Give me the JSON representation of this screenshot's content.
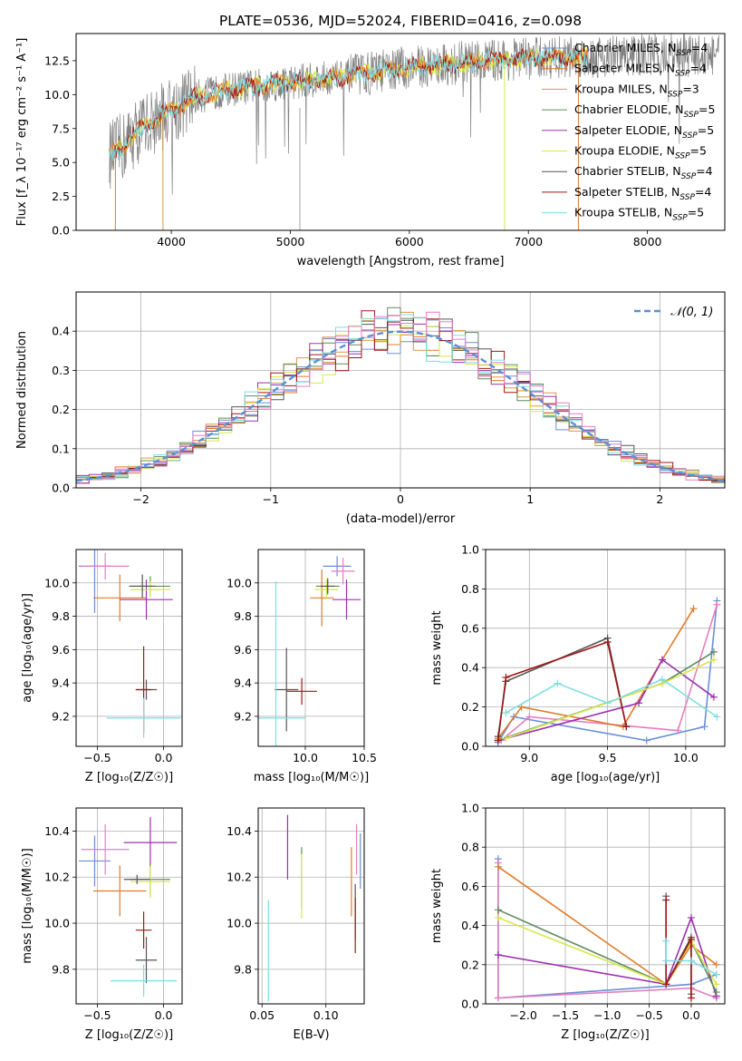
{
  "colors": {
    "chabrier_miles": "#6a8fd8",
    "salpeter_miles": "#e07b2a",
    "kroupa_miles": "#d99a40",
    "chabrier_elodie": "#5f8a5f",
    "salpeter_elodie": "#9b30b0",
    "kroupa_elodie": "#d6e84a",
    "chabrier_stelib": "#555555",
    "salpeter_stelib": "#a01818",
    "kroupa_stelib": "#7fdde0",
    "pink": "#e57fc0",
    "grey_spec": "#808080",
    "normal": "#5b8fd6"
  },
  "chart_data": [
    {
      "id": "spectrum",
      "type": "line",
      "title": "PLATE=0536, MJD=52024, FIBERID=0416, z=0.098",
      "xlabel": "wavelength [Angstrom, rest frame]",
      "ylabel": "Flux [f_λ 10⁻¹⁷ erg cm⁻² s⁻¹ A⁻¹]",
      "xlim": [
        3200,
        8650
      ],
      "ylim": [
        0,
        14.5
      ],
      "xticks": [
        "4000",
        "5000",
        "6000",
        "7000",
        "8000"
      ],
      "xtick_values": [
        4000,
        5000,
        6000,
        7000,
        8000
      ],
      "yticks": [
        "0.0",
        "2.5",
        "5.0",
        "7.5",
        "10.0",
        "12.5"
      ],
      "ytick_values": [
        0,
        2.5,
        5,
        7.5,
        10,
        12.5
      ],
      "legend_position": "top-right",
      "legend": [
        {
          "label": "Chabrier MILES, N",
          "sub": "SSP",
          "suffix": "=4",
          "color": "#6a8fd8"
        },
        {
          "label": "Salpeter MILES, N",
          "sub": "SSP",
          "suffix": "=4",
          "color": "#e07b2a"
        },
        {
          "label": "Kroupa MILES, N",
          "sub": "SSP",
          "suffix": "=3",
          "color": "#d99a40"
        },
        {
          "label": "Chabrier ELODIE, N",
          "sub": "SSP",
          "suffix": "=5",
          "color": "#5f8a5f"
        },
        {
          "label": "Salpeter ELODIE, N",
          "sub": "SSP",
          "suffix": "=5",
          "color": "#9b30b0"
        },
        {
          "label": "Kroupa ELODIE, N",
          "sub": "SSP",
          "suffix": "=5",
          "color": "#d6e84a"
        },
        {
          "label": "Chabrier STELIB, N",
          "sub": "SSP",
          "suffix": "=4",
          "color": "#555555"
        },
        {
          "label": "Salpeter STELIB, N",
          "sub": "SSP",
          "suffix": "=4",
          "color": "#a01818"
        },
        {
          "label": "Kroupa STELIB, N",
          "sub": "SSP",
          "suffix": "=5",
          "color": "#7fdde0"
        }
      ],
      "continuum_x": [
        3500,
        3600,
        3700,
        3800,
        3900,
        4000,
        4200,
        4500,
        5000,
        5500,
        6000,
        6500,
        7000,
        7500,
        8000,
        8500
      ],
      "continuum_y": [
        5.6,
        6.2,
        7.2,
        7.8,
        8.3,
        8.8,
        9.8,
        10.4,
        10.9,
        11.4,
        12.0,
        12.4,
        12.7,
        12.8,
        12.9,
        12.9
      ],
      "drops": [
        {
          "x": 3530,
          "color": "#e07b2a"
        },
        {
          "x": 3930,
          "color": "#d99a40"
        },
        {
          "x": 6800,
          "color": "#d6e84a"
        },
        {
          "x": 7420,
          "color": "#e07b2a"
        }
      ]
    },
    {
      "id": "residuals",
      "type": "step",
      "xlabel": "(data-model)/error",
      "ylabel": "Normed distribution",
      "xlim": [
        -2.5,
        2.5
      ],
      "ylim": [
        0,
        0.5
      ],
      "xticks": [
        "−2",
        "−1",
        "0",
        "1",
        "2"
      ],
      "xtick_values": [
        -2,
        -1,
        0,
        1,
        2
      ],
      "yticks": [
        "0.0",
        "0.1",
        "0.2",
        "0.3",
        "0.4"
      ],
      "ytick_values": [
        0,
        0.1,
        0.2,
        0.3,
        0.4
      ],
      "grid": true,
      "legend_position": "top-right",
      "legend_label": "𝒩(0, 1)",
      "bin_width": 0.1,
      "bins_start": -2.5
    },
    {
      "id": "z_age",
      "type": "errorbar",
      "xlabel": "Z [log₁₀(Z/Z☉)]",
      "ylabel": "age  [log₁₀(age/yr)]",
      "xlim": [
        -0.66,
        0.14
      ],
      "ylim": [
        9.02,
        10.2
      ],
      "xticks": [
        "−0.5",
        "0.0"
      ],
      "xtick_values": [
        -0.5,
        0
      ],
      "yticks": [
        "9.2",
        "9.4",
        "9.6",
        "9.8",
        "10.0"
      ],
      "ytick_values": [
        9.2,
        9.4,
        9.6,
        9.8,
        10.0
      ],
      "grid": true,
      "points": [
        {
          "x": -0.52,
          "y": 10.1,
          "xerr": 0.12,
          "yerr": 0.28,
          "color": "#6a8fd8"
        },
        {
          "x": -0.44,
          "y": 10.1,
          "xerr": 0.18,
          "yerr": 0.08,
          "color": "#e57fc0"
        },
        {
          "x": -0.33,
          "y": 9.91,
          "xerr": 0.2,
          "yerr": 0.14,
          "color": "#e07b2a"
        },
        {
          "x": -0.13,
          "y": 9.9,
          "xerr": 0.2,
          "yerr": 0.12,
          "color": "#9b30b0"
        },
        {
          "x": -0.1,
          "y": 9.98,
          "xerr": 0.15,
          "yerr": 0.06,
          "color": "#5f8a5f"
        },
        {
          "x": -0.1,
          "y": 9.96,
          "xerr": 0.15,
          "yerr": 0.05,
          "color": "#d6e84a"
        },
        {
          "x": -0.16,
          "y": 9.98,
          "xerr": 0.1,
          "yerr": 0.07,
          "color": "#555555"
        },
        {
          "x": -0.13,
          "y": 9.36,
          "xerr": 0.08,
          "yerr": 0.06,
          "color": "#555555"
        },
        {
          "x": -0.15,
          "y": 9.36,
          "xerr": 0.06,
          "yerr": 0.26,
          "color": "#a01818"
        },
        {
          "x": -0.15,
          "y": 9.19,
          "xerr": 0.28,
          "yerr": 0.12,
          "color": "#7fdde0"
        }
      ]
    },
    {
      "id": "mass_age",
      "type": "errorbar",
      "xlabel": "mass [log₁₀(M/M☉)]",
      "ylabel": "",
      "xlim": [
        9.6,
        10.5
      ],
      "ylim": [
        9.02,
        10.2
      ],
      "xticks": [
        "10.0",
        "10.5"
      ],
      "xtick_values": [
        10.0,
        10.5
      ],
      "yticks": [
        "9.2",
        "9.4",
        "9.6",
        "9.8",
        "10.0"
      ],
      "ytick_values": [
        9.2,
        9.4,
        9.6,
        9.8,
        10.0
      ],
      "grid": true,
      "points": [
        {
          "x": 10.27,
          "y": 10.1,
          "xerr": 0.12,
          "yerr": 0.06,
          "color": "#6a8fd8"
        },
        {
          "x": 10.32,
          "y": 10.07,
          "xerr": 0.1,
          "yerr": 0.08,
          "color": "#e57fc0"
        },
        {
          "x": 10.14,
          "y": 9.91,
          "xerr": 0.1,
          "yerr": 0.17,
          "color": "#e07b2a"
        },
        {
          "x": 10.35,
          "y": 9.9,
          "xerr": 0.12,
          "yerr": 0.12,
          "color": "#9b30b0"
        },
        {
          "x": 10.19,
          "y": 9.98,
          "xerr": 0.1,
          "yerr": 0.05,
          "color": "#5f8a5f"
        },
        {
          "x": 10.18,
          "y": 9.96,
          "xerr": 0.1,
          "yerr": 0.06,
          "color": "#d6e84a"
        },
        {
          "x": 10.19,
          "y": 9.98,
          "xerr": 0.06,
          "yerr": 0.04,
          "color": "#555555"
        },
        {
          "x": 9.84,
          "y": 9.36,
          "xerr": 0.1,
          "yerr": 0.25,
          "color": "#555555"
        },
        {
          "x": 9.97,
          "y": 9.35,
          "xerr": 0.13,
          "yerr": 0.08,
          "color": "#a01818"
        },
        {
          "x": 9.75,
          "y": 9.19,
          "xerr": 0.25,
          "yerr": 0.82,
          "color": "#7fdde0"
        }
      ]
    },
    {
      "id": "age_weight",
      "type": "line",
      "xlabel": "age  [log₁₀(age/yr)]",
      "ylabel": "mass weight",
      "xlim": [
        8.72,
        10.25
      ],
      "ylim": [
        0,
        1
      ],
      "xticks": [
        "9.0",
        "9.5",
        "10.0"
      ],
      "xtick_values": [
        9.0,
        9.5,
        10.0
      ],
      "yticks": [
        "0.0",
        "0.2",
        "0.4",
        "0.6",
        "0.8",
        "1.0"
      ],
      "ytick_values": [
        0,
        0.2,
        0.4,
        0.6,
        0.8,
        1.0
      ],
      "grid": true,
      "series": [
        {
          "color": "#6a8fd8",
          "x": [
            8.8,
            8.9,
            9.75,
            10.12,
            10.2
          ],
          "y": [
            0.02,
            0.15,
            0.03,
            0.1,
            0.74
          ]
        },
        {
          "color": "#e57fc0",
          "x": [
            8.82,
            9.0,
            9.95,
            10.2
          ],
          "y": [
            0.03,
            0.15,
            0.08,
            0.72
          ]
        },
        {
          "color": "#e07b2a",
          "x": [
            8.8,
            8.95,
            9.6,
            9.85,
            10.05
          ],
          "y": [
            0.04,
            0.2,
            0.1,
            0.44,
            0.7
          ]
        },
        {
          "color": "#9b30b0",
          "x": [
            8.8,
            9.7,
            9.85,
            10.18
          ],
          "y": [
            0.03,
            0.22,
            0.44,
            0.25
          ]
        },
        {
          "color": "#5f8a5f",
          "x": [
            8.8,
            9.85,
            10.18
          ],
          "y": [
            0.03,
            0.32,
            0.48
          ]
        },
        {
          "color": "#d6e84a",
          "x": [
            8.85,
            9.85,
            10.18
          ],
          "y": [
            0.04,
            0.32,
            0.44
          ]
        },
        {
          "color": "#555555",
          "x": [
            8.8,
            8.85,
            9.5,
            9.62
          ],
          "y": [
            0.05,
            0.33,
            0.55,
            0.1
          ]
        },
        {
          "color": "#a01818",
          "x": [
            8.8,
            8.85,
            9.5,
            9.62
          ],
          "y": [
            0.03,
            0.35,
            0.53,
            0.1
          ]
        },
        {
          "color": "#7fdde0",
          "x": [
            8.85,
            9.18,
            9.5,
            9.85,
            10.2
          ],
          "y": [
            0.17,
            0.32,
            0.22,
            0.34,
            0.15
          ]
        }
      ]
    },
    {
      "id": "z_mass",
      "type": "errorbar",
      "xlabel": "Z [log₁₀(Z/Z☉)]",
      "ylabel": "mass [log₁₀(M/M☉)]",
      "xlim": [
        -0.66,
        0.14
      ],
      "ylim": [
        9.65,
        10.5
      ],
      "xticks": [
        "−0.5",
        "0.0"
      ],
      "xtick_values": [
        -0.5,
        0
      ],
      "yticks": [
        "9.8",
        "10.0",
        "10.2",
        "10.4"
      ],
      "ytick_values": [
        9.8,
        10.0,
        10.2,
        10.4
      ],
      "grid": true,
      "points": [
        {
          "x": -0.52,
          "y": 10.27,
          "xerr": 0.12,
          "yerr": 0.11,
          "color": "#6a8fd8"
        },
        {
          "x": -0.44,
          "y": 10.32,
          "xerr": 0.18,
          "yerr": 0.11,
          "color": "#e57fc0"
        },
        {
          "x": -0.33,
          "y": 10.14,
          "xerr": 0.2,
          "yerr": 0.11,
          "color": "#e07b2a"
        },
        {
          "x": -0.1,
          "y": 10.35,
          "xerr": 0.2,
          "yerr": 0.11,
          "color": "#9b30b0"
        },
        {
          "x": -0.1,
          "y": 10.19,
          "xerr": 0.15,
          "yerr": 0.07,
          "color": "#5f8a5f"
        },
        {
          "x": -0.1,
          "y": 10.18,
          "xerr": 0.15,
          "yerr": 0.07,
          "color": "#d6e84a"
        },
        {
          "x": -0.2,
          "y": 10.19,
          "xerr": 0.1,
          "yerr": 0.02,
          "color": "#555555"
        },
        {
          "x": -0.13,
          "y": 9.84,
          "xerr": 0.08,
          "yerr": 0.1,
          "color": "#555555"
        },
        {
          "x": -0.15,
          "y": 9.97,
          "xerr": 0.06,
          "yerr": 0.08,
          "color": "#a01818"
        },
        {
          "x": -0.15,
          "y": 9.75,
          "xerr": 0.25,
          "yerr": 0.07,
          "color": "#7fdde0"
        }
      ]
    },
    {
      "id": "ebv_mass",
      "type": "errorbar",
      "xlabel": "E(B-V)",
      "ylabel": "",
      "xlim": [
        0.047,
        0.13
      ],
      "ylim": [
        9.65,
        10.5
      ],
      "xticks": [
        "0.05",
        "0.10"
      ],
      "xtick_values": [
        0.05,
        0.1
      ],
      "yticks": [
        "9.8",
        "10.0",
        "10.2",
        "10.4"
      ],
      "ytick_values": [
        9.8,
        10.0,
        10.2,
        10.4
      ],
      "grid": true,
      "points": [
        {
          "x": 0.127,
          "y": 10.27,
          "yerr": 0.12,
          "color": "#6a8fd8"
        },
        {
          "x": 0.124,
          "y": 10.32,
          "yerr": 0.11,
          "color": "#e57fc0"
        },
        {
          "x": 0.12,
          "y": 10.18,
          "yerr": 0.15,
          "color": "#e07b2a"
        },
        {
          "x": 0.07,
          "y": 10.33,
          "yerr": 0.14,
          "color": "#9b30b0"
        },
        {
          "x": 0.081,
          "y": 10.2,
          "yerr": 0.13,
          "color": "#5f8a5f"
        },
        {
          "x": 0.081,
          "y": 10.16,
          "yerr": 0.14,
          "color": "#d6e84a"
        },
        {
          "x": 0.123,
          "y": 10.05,
          "yerr": 0.12,
          "color": "#555555"
        },
        {
          "x": 0.123,
          "y": 9.99,
          "yerr": 0.12,
          "color": "#a01818"
        },
        {
          "x": 0.055,
          "y": 9.88,
          "yerr": 0.22,
          "color": "#7fdde0"
        }
      ]
    },
    {
      "id": "z_weight",
      "type": "line",
      "xlabel": "Z [log₁₀(Z/Z☉)]",
      "ylabel": "mass weight",
      "xlim": [
        -2.45,
        0.4
      ],
      "ylim": [
        0,
        1
      ],
      "xticks": [
        "−2.0",
        "−1.5",
        "−1.0",
        "−0.5",
        "0.0"
      ],
      "xtick_values": [
        -2.0,
        -1.5,
        -1.0,
        -0.5,
        0
      ],
      "yticks": [
        "0.0",
        "0.2",
        "0.4",
        "0.6",
        "0.8",
        "1.0"
      ],
      "ytick_values": [
        0,
        0.2,
        0.4,
        0.6,
        0.8,
        1.0
      ],
      "grid": true,
      "series": [
        {
          "color": "#6a8fd8",
          "x": [
            -2.3,
            -2.3,
            0.0,
            0.3
          ],
          "y": [
            0.74,
            0.03,
            0.1,
            0.15
          ]
        },
        {
          "color": "#e57fc0",
          "x": [
            -2.3,
            -2.3,
            0.0,
            0.3
          ],
          "y": [
            0.72,
            0.03,
            0.08,
            0.03
          ]
        },
        {
          "color": "#e07b2a",
          "x": [
            -2.3,
            -0.3,
            0.0,
            0.3
          ],
          "y": [
            0.7,
            0.1,
            0.3,
            0.2
          ]
        },
        {
          "color": "#9b30b0",
          "x": [
            -2.3,
            -0.3,
            0.0,
            0.3
          ],
          "y": [
            0.25,
            0.1,
            0.44,
            0.04
          ]
        },
        {
          "color": "#5f8a5f",
          "x": [
            -2.3,
            -0.3,
            0.0,
            0.3
          ],
          "y": [
            0.48,
            0.1,
            0.32,
            0.06
          ]
        },
        {
          "color": "#d6e84a",
          "x": [
            -2.3,
            -0.3,
            0.0,
            0.3
          ],
          "y": [
            0.44,
            0.1,
            0.32,
            0.1
          ]
        },
        {
          "color": "#555555",
          "x": [
            -0.3,
            -0.3,
            0.0,
            0.0
          ],
          "y": [
            0.55,
            0.1,
            0.34,
            0.05
          ]
        },
        {
          "color": "#a01818",
          "x": [
            -0.3,
            -0.3,
            0.0,
            0.0
          ],
          "y": [
            0.53,
            0.1,
            0.33,
            0.03
          ]
        },
        {
          "color": "#7fdde0",
          "x": [
            -0.3,
            -0.3,
            0.0,
            0.3
          ],
          "y": [
            0.32,
            0.22,
            0.22,
            0.15
          ]
        }
      ]
    }
  ]
}
